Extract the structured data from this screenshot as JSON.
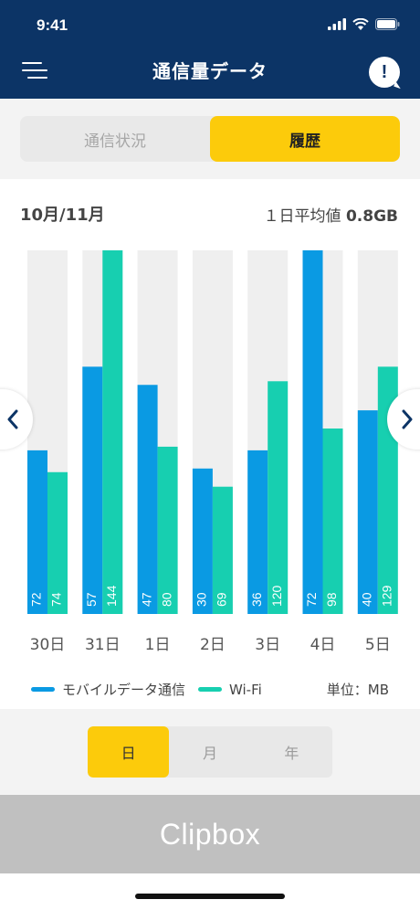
{
  "status_bar": {
    "time": "9:41"
  },
  "header": {
    "title": "通信量データ",
    "help_label": "!"
  },
  "tabs": [
    {
      "label": "通信状況",
      "active": false
    },
    {
      "label": "履歴",
      "active": true
    }
  ],
  "summary": {
    "period": "10月/11月",
    "average_label": "１日平均値",
    "average_value": "0.8GB"
  },
  "colors": {
    "mobile": "#0a9ae3",
    "wifi": "#17cfb0",
    "track": "#efefef",
    "accent": "#fccb0b",
    "header": "#0c3466"
  },
  "chart_data": {
    "type": "bar",
    "categories": [
      "30日",
      "31日",
      "1日",
      "2日",
      "3日",
      "4日",
      "5日"
    ],
    "series": [
      {
        "name": "モバイルデータ通信",
        "values": [
          72,
          57,
          47,
          30,
          36,
          72,
          40
        ]
      },
      {
        "name": "Wi-Fi",
        "values": [
          74,
          144,
          80,
          69,
          120,
          98,
          129
        ]
      }
    ],
    "bar_fill_fraction": {
      "mobile": [
        0.45,
        0.68,
        0.63,
        0.4,
        0.45,
        1.0,
        0.56
      ],
      "wifi": [
        0.39,
        1.0,
        0.46,
        0.35,
        0.64,
        0.51,
        0.68
      ]
    },
    "unit": "単位：MB",
    "legend_position": "bottom"
  },
  "period_tabs": [
    {
      "label": "日",
      "active": true
    },
    {
      "label": "月",
      "active": false
    },
    {
      "label": "年",
      "active": false
    }
  ],
  "ad": {
    "text": "Clipbox"
  }
}
